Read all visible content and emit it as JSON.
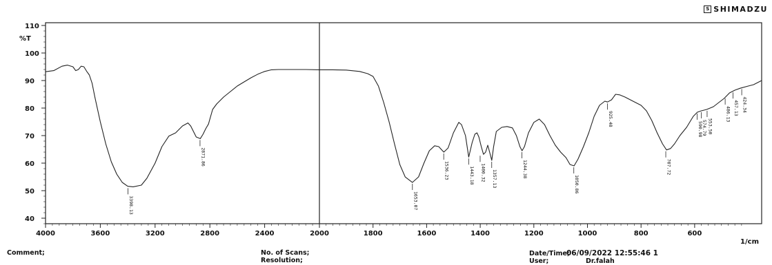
{
  "brand": {
    "name": "SHIMADZU",
    "icon": "shimadzu-logo-icon"
  },
  "chart_data": {
    "type": "line",
    "ylabel": "%T",
    "xlabel": "1/cm",
    "xlim": [
      4000,
      350
    ],
    "ylim": [
      38,
      111
    ],
    "x_scale_break": 2000,
    "x_ticks": [
      4000,
      3600,
      3200,
      2800,
      2400,
      2000,
      1800,
      1600,
      1400,
      1200,
      1000,
      800,
      600
    ],
    "y_ticks": [
      40,
      50,
      60,
      70,
      80,
      90,
      100,
      110
    ],
    "x_tick_labels": [
      "4000",
      "3600",
      "3200",
      "2800",
      "2400",
      "2000",
      "1800",
      "1600",
      "1400",
      "1200",
      "1000",
      "800",
      "600"
    ],
    "y_tick_labels": [
      "40",
      "50",
      "60",
      "70",
      "80",
      "90",
      "100",
      "110"
    ],
    "grid": false,
    "series": [
      {
        "color": "#222222",
        "points": [
          [
            4000,
            93.2
          ],
          [
            3940,
            93.6
          ],
          [
            3880,
            95.2
          ],
          [
            3840,
            95.6
          ],
          [
            3800,
            95.0
          ],
          [
            3780,
            93.6
          ],
          [
            3760,
            94.0
          ],
          [
            3740,
            95.2
          ],
          [
            3720,
            95.0
          ],
          [
            3700,
            93.4
          ],
          [
            3680,
            92.0
          ],
          [
            3660,
            89.0
          ],
          [
            3640,
            84.0
          ],
          [
            3600,
            75.0
          ],
          [
            3560,
            67.0
          ],
          [
            3520,
            60.5
          ],
          [
            3480,
            56.0
          ],
          [
            3440,
            53.0
          ],
          [
            3400,
            51.6
          ],
          [
            3360,
            51.4
          ],
          [
            3300,
            52.0
          ],
          [
            3260,
            54.5
          ],
          [
            3200,
            60.0
          ],
          [
            3150,
            66.0
          ],
          [
            3100,
            69.8
          ],
          [
            3050,
            71.0
          ],
          [
            3000,
            73.5
          ],
          [
            2960,
            74.6
          ],
          [
            2940,
            73.5
          ],
          [
            2920,
            71.5
          ],
          [
            2900,
            69.5
          ],
          [
            2870,
            68.9
          ],
          [
            2850,
            70.5
          ],
          [
            2830,
            72.5
          ],
          [
            2810,
            74.2
          ],
          [
            2800,
            76.0
          ],
          [
            2780,
            79.5
          ],
          [
            2750,
            81.5
          ],
          [
            2700,
            84.0
          ],
          [
            2650,
            86.0
          ],
          [
            2600,
            88.0
          ],
          [
            2550,
            89.5
          ],
          [
            2500,
            91.0
          ],
          [
            2450,
            92.3
          ],
          [
            2400,
            93.3
          ],
          [
            2350,
            93.9
          ],
          [
            2300,
            94.0
          ],
          [
            2200,
            94.0
          ],
          [
            2100,
            94.0
          ],
          [
            2000,
            93.9
          ],
          [
            1950,
            93.9
          ],
          [
            1900,
            93.8
          ],
          [
            1850,
            93.3
          ],
          [
            1820,
            92.5
          ],
          [
            1800,
            91.5
          ],
          [
            1780,
            88.0
          ],
          [
            1760,
            82.0
          ],
          [
            1740,
            75.0
          ],
          [
            1720,
            67.0
          ],
          [
            1700,
            59.5
          ],
          [
            1680,
            55.0
          ],
          [
            1653,
            53.0
          ],
          [
            1630,
            55.0
          ],
          [
            1610,
            60.0
          ],
          [
            1590,
            64.5
          ],
          [
            1570,
            66.3
          ],
          [
            1555,
            66.0
          ],
          [
            1536,
            64.0
          ],
          [
            1520,
            65.5
          ],
          [
            1500,
            71.0
          ],
          [
            1480,
            74.8
          ],
          [
            1470,
            74.0
          ],
          [
            1455,
            70.0
          ],
          [
            1443,
            62.2
          ],
          [
            1430,
            67.5
          ],
          [
            1420,
            70.5
          ],
          [
            1412,
            71.0
          ],
          [
            1405,
            69.5
          ],
          [
            1396,
            66.0
          ],
          [
            1388,
            63.2
          ],
          [
            1380,
            64.0
          ],
          [
            1372,
            66.5
          ],
          [
            1365,
            64.0
          ],
          [
            1357,
            61.0
          ],
          [
            1350,
            66.0
          ],
          [
            1340,
            71.5
          ],
          [
            1320,
            73.0
          ],
          [
            1300,
            73.3
          ],
          [
            1280,
            72.8
          ],
          [
            1265,
            70.0
          ],
          [
            1252,
            66.0
          ],
          [
            1244,
            64.5
          ],
          [
            1235,
            66.0
          ],
          [
            1220,
            71.0
          ],
          [
            1200,
            74.8
          ],
          [
            1180,
            76.0
          ],
          [
            1160,
            74.0
          ],
          [
            1140,
            70.0
          ],
          [
            1120,
            66.5
          ],
          [
            1100,
            64.0
          ],
          [
            1080,
            62.0
          ],
          [
            1065,
            59.5
          ],
          [
            1050,
            59.0
          ],
          [
            1035,
            61.5
          ],
          [
            1015,
            66.0
          ],
          [
            995,
            71.0
          ],
          [
            975,
            77.0
          ],
          [
            955,
            81.0
          ],
          [
            935,
            82.5
          ],
          [
            925,
            82.2
          ],
          [
            910,
            83.0
          ],
          [
            895,
            85.0
          ],
          [
            880,
            84.8
          ],
          [
            860,
            84.0
          ],
          [
            830,
            82.5
          ],
          [
            800,
            81.0
          ],
          [
            780,
            79.0
          ],
          [
            760,
            75.5
          ],
          [
            740,
            71.0
          ],
          [
            720,
            67.0
          ],
          [
            705,
            64.8
          ],
          [
            690,
            65.3
          ],
          [
            675,
            67.0
          ],
          [
            655,
            70.0
          ],
          [
            630,
            73.0
          ],
          [
            605,
            77.0
          ],
          [
            590,
            78.5
          ],
          [
            575,
            79.0
          ],
          [
            555,
            79.5
          ],
          [
            530,
            80.5
          ],
          [
            510,
            82.0
          ],
          [
            490,
            83.5
          ],
          [
            470,
            85.5
          ],
          [
            450,
            86.5
          ],
          [
            430,
            87.2
          ],
          [
            400,
            88.0
          ],
          [
            380,
            88.5
          ],
          [
            360,
            89.5
          ],
          [
            350,
            90.0
          ]
        ]
      }
    ],
    "annotations": [
      {
        "x": 3398.13,
        "y": 51.4,
        "label": "3398.13"
      },
      {
        "x": 2871.86,
        "y": 68.9,
        "label": "2871.86"
      },
      {
        "x": 1653.07,
        "y": 53.0,
        "label": "1653.07"
      },
      {
        "x": 1536.23,
        "y": 64.0,
        "label": "1536.23"
      },
      {
        "x": 1443.18,
        "y": 62.2,
        "label": "1443.18"
      },
      {
        "x": 1400.32,
        "y": 63.2,
        "label": "1400.32"
      },
      {
        "x": 1357.13,
        "y": 61.0,
        "label": "1357.13"
      },
      {
        "x": 1244.38,
        "y": 64.5,
        "label": "1244.38"
      },
      {
        "x": 1050.86,
        "y": 59.0,
        "label": "1050.86"
      },
      {
        "x": 925.48,
        "y": 82.2,
        "label": "925.48"
      },
      {
        "x": 707.72,
        "y": 64.8,
        "label": "707.72"
      },
      {
        "x": 590.98,
        "y": 78.5,
        "label": "590.98"
      },
      {
        "x": 574.79,
        "y": 79.0,
        "label": "574.79"
      },
      {
        "x": 553.5,
        "y": 79.5,
        "label": "553.50"
      },
      {
        "x": 486.13,
        "y": 84.0,
        "label": "486.13"
      },
      {
        "x": 457.13,
        "y": 86.2,
        "label": "457.13"
      },
      {
        "x": 424.34,
        "y": 87.4,
        "label": "424.34"
      }
    ]
  },
  "footer": {
    "comment_label": "Comment;",
    "scans_label": "No. of Scans;",
    "resolution_label": "Resolution;",
    "datetime_label": "Date/Time;",
    "datetime_value": "06/09/2022 12:55:46 1",
    "user_label": "User;",
    "user_value": "Dr.falah"
  }
}
